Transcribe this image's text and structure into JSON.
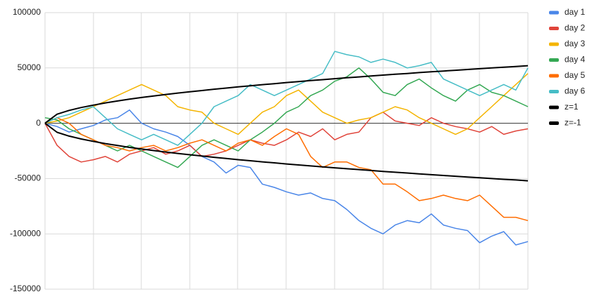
{
  "chart_data": {
    "type": "line",
    "ylim": [
      -150000,
      100000
    ],
    "yticks": [
      -150000,
      -100000,
      -50000,
      0,
      50000,
      100000
    ],
    "grid": true,
    "legend": "right",
    "series": [
      {
        "name": "day 1",
        "color": "#4a86e8",
        "values": [
          0,
          -3000,
          -8000,
          -5000,
          -2000,
          3000,
          5000,
          12000,
          0,
          -5000,
          -8000,
          -12000,
          -20000,
          -30000,
          -35000,
          -45000,
          -38000,
          -40000,
          -55000,
          -58000,
          -62000,
          -65000,
          -63000,
          -68000,
          -70000,
          -78000,
          -88000,
          -95000,
          -100000,
          -92000,
          -88000,
          -90000,
          -82000,
          -92000,
          -95000,
          -97000,
          -108000,
          -102000,
          -98000,
          -110000,
          -107000
        ]
      },
      {
        "name": "day 2",
        "color": "#e0443a",
        "values": [
          0,
          -20000,
          -30000,
          -35000,
          -33000,
          -30000,
          -35000,
          -28000,
          -25000,
          -22000,
          -28000,
          -25000,
          -20000,
          -30000,
          -28000,
          -25000,
          -20000,
          -15000,
          -18000,
          -20000,
          -15000,
          -8000,
          -12000,
          -5000,
          -15000,
          -10000,
          -8000,
          5000,
          10000,
          2000,
          0,
          -2000,
          5000,
          0,
          -3000,
          -5000,
          -8000,
          -3000,
          -10000,
          -7000,
          -5000
        ]
      },
      {
        "name": "day 3",
        "color": "#f4b400",
        "values": [
          0,
          2000,
          5000,
          10000,
          15000,
          20000,
          25000,
          30000,
          35000,
          30000,
          25000,
          15000,
          12000,
          10000,
          0,
          -5000,
          -10000,
          0,
          10000,
          15000,
          25000,
          30000,
          20000,
          10000,
          5000,
          0,
          3000,
          5000,
          10000,
          15000,
          12000,
          5000,
          0,
          -5000,
          -10000,
          -5000,
          5000,
          15000,
          25000,
          35000,
          45000
        ]
      },
      {
        "name": "day 4",
        "color": "#34a853",
        "values": [
          5000,
          3000,
          -5000,
          -10000,
          -15000,
          -20000,
          -25000,
          -20000,
          -25000,
          -30000,
          -35000,
          -40000,
          -30000,
          -20000,
          -15000,
          -20000,
          -25000,
          -15000,
          -8000,
          0,
          10000,
          15000,
          25000,
          30000,
          38000,
          42000,
          50000,
          40000,
          28000,
          25000,
          35000,
          40000,
          32000,
          25000,
          20000,
          30000,
          35000,
          28000,
          25000,
          20000,
          15000
        ]
      },
      {
        "name": "day 5",
        "color": "#ff6d01",
        "values": [
          0,
          5000,
          0,
          -10000,
          -15000,
          -20000,
          -22000,
          -25000,
          -22000,
          -20000,
          -25000,
          -22000,
          -18000,
          -15000,
          -20000,
          -25000,
          -18000,
          -15000,
          -20000,
          -12000,
          -5000,
          -10000,
          -30000,
          -40000,
          -35000,
          -35000,
          -40000,
          -42000,
          -55000,
          -55000,
          -62000,
          -70000,
          -68000,
          -65000,
          -68000,
          -70000,
          -65000,
          -75000,
          -85000,
          -85000,
          -88000
        ]
      },
      {
        "name": "day 6",
        "color": "#46bdc6",
        "values": [
          0,
          5000,
          8000,
          12000,
          15000,
          5000,
          -5000,
          -10000,
          -15000,
          -10000,
          -15000,
          -20000,
          -10000,
          0,
          15000,
          20000,
          25000,
          35000,
          30000,
          25000,
          30000,
          35000,
          40000,
          45000,
          65000,
          62000,
          60000,
          55000,
          58000,
          55000,
          50000,
          52000,
          55000,
          40000,
          35000,
          30000,
          25000,
          30000,
          35000,
          30000,
          50000
        ]
      },
      {
        "name": "z=1",
        "color": "#000000",
        "values": [
          0,
          8200,
          11600,
          14200,
          16400,
          18400,
          20100,
          21800,
          23300,
          24700,
          26000,
          27300,
          28500,
          29600,
          30800,
          31800,
          32900,
          33900,
          34900,
          35800,
          36800,
          37700,
          38600,
          39400,
          40300,
          41100,
          41900,
          42700,
          43500,
          44300,
          45000,
          45800,
          46500,
          47200,
          47900,
          48600,
          49300,
          50000,
          50700,
          51300,
          52000
        ]
      },
      {
        "name": "z=-1",
        "color": "#000000",
        "values": [
          0,
          -8200,
          -11600,
          -14200,
          -16400,
          -18400,
          -20100,
          -21800,
          -23300,
          -24700,
          -26000,
          -27300,
          -28500,
          -29600,
          -30800,
          -31800,
          -32900,
          -33900,
          -34900,
          -35800,
          -36800,
          -37700,
          -38600,
          -39400,
          -40300,
          -41100,
          -41900,
          -42700,
          -43500,
          -44300,
          -45000,
          -45800,
          -46500,
          -47200,
          -47900,
          -48600,
          -49300,
          -50000,
          -50700,
          -51300,
          -52000
        ]
      }
    ]
  }
}
